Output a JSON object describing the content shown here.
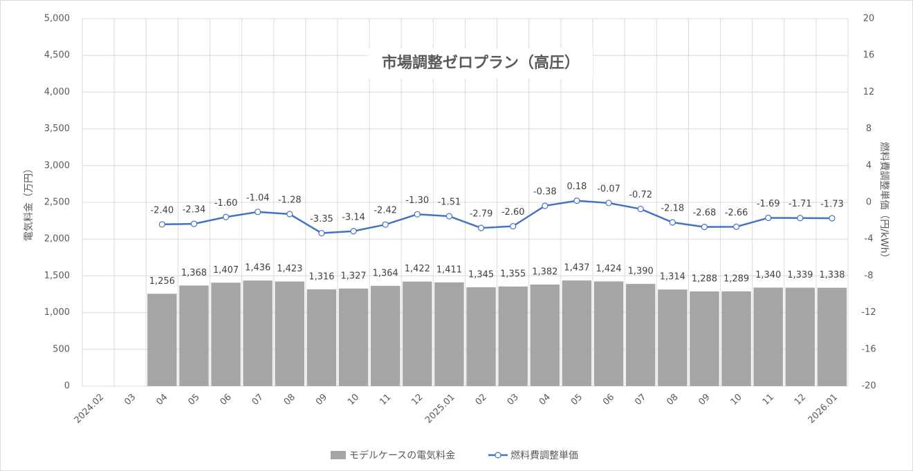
{
  "chart_data": {
    "type": "bar-line",
    "title": "市場調整ゼロプラン（高圧）",
    "y_label": "電気料金（万円）",
    "y2_label": "燃料費調整単価（円/kWh）",
    "categories": [
      "2024.02",
      "03",
      "04",
      "05",
      "06",
      "07",
      "08",
      "09",
      "10",
      "11",
      "12",
      "2025.01",
      "02",
      "03",
      "04",
      "05",
      "06",
      "07",
      "08",
      "09",
      "10",
      "11",
      "12",
      "2026.01"
    ],
    "series": [
      {
        "name": "モデルケースの電気料金",
        "type": "bar",
        "color": "#a5a5a5",
        "values": [
          null,
          null,
          1256,
          1368,
          1407,
          1436,
          1423,
          1316,
          1327,
          1364,
          1422,
          1411,
          1345,
          1355,
          1382,
          1437,
          1424,
          1390,
          1314,
          1288,
          1289,
          1340,
          1339,
          1338
        ],
        "value_labels": [
          null,
          null,
          "1,256",
          "1,368",
          "1,407",
          "1,436",
          "1,423",
          "1,316",
          "1,327",
          "1,364",
          "1,422",
          "1,411",
          "1,345",
          "1,355",
          "1,382",
          "1,437",
          "1,424",
          "1,390",
          "1,314",
          "1,288",
          "1,289",
          "1,340",
          "1,339",
          "1,338"
        ]
      },
      {
        "name": "燃料費調整単価",
        "type": "line",
        "color": "#4472c4",
        "axis": "y2",
        "values": [
          null,
          null,
          -2.4,
          -2.34,
          -1.6,
          -1.04,
          -1.28,
          -3.35,
          -3.14,
          -2.42,
          -1.3,
          -1.51,
          -2.79,
          -2.6,
          -0.38,
          0.18,
          -0.07,
          -0.72,
          -2.18,
          -2.68,
          -2.66,
          -1.69,
          -1.71,
          -1.73
        ],
        "value_labels": [
          null,
          null,
          "-2.40",
          "-2.34",
          "-1.60",
          "-1.04",
          "-1.28",
          "-3.35",
          "-3.14",
          "-2.42",
          "-1.30",
          "-1.51",
          "-2.79",
          "-2.60",
          "-0.38",
          "0.18",
          "-0.07",
          "-0.72",
          "-2.18",
          "-2.68",
          "-2.66",
          "-1.69",
          "-1.71",
          "-1.73"
        ]
      }
    ],
    "ylim": [
      0,
      5000
    ],
    "yticks": [
      0,
      500,
      {
        "value": 1000,
        "label": "1,000"
      },
      {
        "value": 1500,
        "label": "1,500"
      },
      {
        "value": 2000,
        "label": "2,000"
      },
      {
        "value": 2500,
        "label": "2,500"
      },
      {
        "value": 3000,
        "label": "3,000"
      },
      {
        "value": 3500,
        "label": "3,500"
      },
      {
        "value": 4000,
        "label": "4,000"
      },
      {
        "value": 4500,
        "label": "4,500"
      },
      {
        "value": 5000,
        "label": "5,000"
      }
    ],
    "y2lim": [
      -20,
      20
    ],
    "y2ticks": [
      -20,
      -16,
      -12,
      -8,
      -4,
      0,
      4,
      8,
      12,
      16,
      20
    ],
    "grid": true,
    "legend": "bottom"
  }
}
